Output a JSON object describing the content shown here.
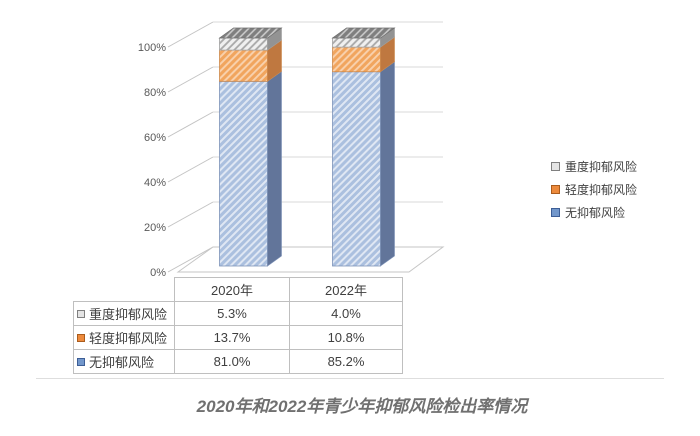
{
  "chart_data": {
    "type": "bar",
    "subtype": "3d-stacked-column-100pct",
    "title": "2020年和2022年青少年抑郁风险检出率情况",
    "categories": [
      "2020年",
      "2022年"
    ],
    "series": [
      {
        "name": "重度抑郁风险",
        "values": [
          5.3,
          4.0
        ],
        "color": "#a6a6a6"
      },
      {
        "name": "轻度抑郁风险",
        "values": [
          13.7,
          10.8
        ],
        "color": "#ed7d31"
      },
      {
        "name": "无抑郁风险",
        "values": [
          81.0,
          85.2
        ],
        "color": "#8faadc"
      }
    ],
    "stack_order_bottom_to_top": [
      "无抑郁风险",
      "轻度抑郁风险",
      "重度抑郁风险"
    ],
    "y_ticks": [
      "100%",
      "80%",
      "60%",
      "40%",
      "20%",
      "0%"
    ],
    "ylim": [
      0,
      100
    ],
    "grid": true,
    "legend_position": "right"
  },
  "legend": {
    "items": [
      {
        "label": "重度抑郁风险"
      },
      {
        "label": "轻度抑郁风险"
      },
      {
        "label": "无抑郁风险"
      }
    ]
  },
  "table": {
    "headers": [
      "2020年",
      "2022年"
    ],
    "rows": [
      {
        "label": "重度抑郁风险",
        "values": [
          "5.3%",
          "4.0%"
        ]
      },
      {
        "label": "轻度抑郁风险",
        "values": [
          "13.7%",
          "10.8%"
        ]
      },
      {
        "label": "无抑郁风险",
        "values": [
          "81.0%",
          "85.2%"
        ]
      }
    ]
  },
  "caption": "2020年和2022年青少年抑郁风险检出率情况",
  "colors": {
    "severe_front_bg": "#f0f0f0",
    "severe_stripe": "#a8a8a8",
    "severe_side": "#939393",
    "severe_top_bg": "#7f7f7f",
    "mild_front_bg": "#f1a55e",
    "mild_side": "#bf7840",
    "none_front_bg": "#abc0df",
    "none_side": "#62759a",
    "gridline": "#d9d9d9",
    "leader_line": "#c3c3c3",
    "floor_edge": "#c6c6c6",
    "table_border": "#bfbfbf",
    "body_text": "#404040",
    "axis_text": "#595959",
    "caption_text": "#707070"
  }
}
